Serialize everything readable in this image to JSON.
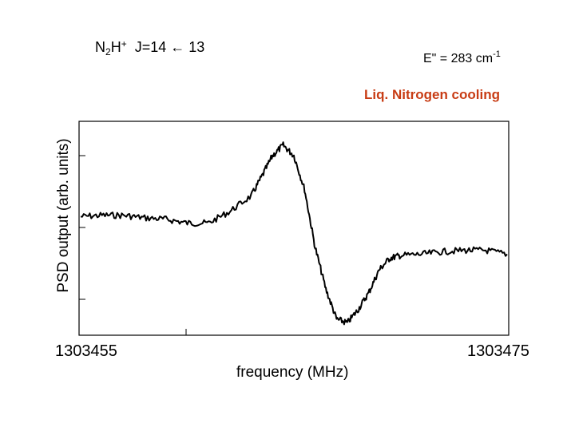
{
  "chart_data": {
    "type": "line",
    "title_parts": {
      "a": "N",
      "b": "2",
      "c": "H",
      "d": "+",
      "e": "J=14 ← 13"
    },
    "energy": {
      "main": "E\" = 283 cm",
      "exp": "-1"
    },
    "annotation": "Liq. Nitrogen cooling",
    "xlabel": "frequency (MHz)",
    "ylabel": "PSD output (arb. units)",
    "x_tick_labels": [
      "1303455",
      "1303475"
    ],
    "xlim": [
      1303455,
      1303475
    ],
    "ylim": [
      -0.6,
      1.0
    ],
    "grid": false,
    "legend": "none",
    "colors": {
      "line": "#000000",
      "annotation": "#c83c14"
    },
    "series": [
      {
        "x": [
          1303455.0,
          1303456.0,
          1303457.0,
          1303458.0,
          1303459.0,
          1303460.0,
          1303461.0,
          1303462.0,
          1303463.0,
          1303463.5,
          1303464.0,
          1303464.5,
          1303465.0,
          1303465.5,
          1303466.0,
          1303466.5,
          1303467.0,
          1303467.5,
          1303468.0,
          1303468.5,
          1303469.0,
          1303469.5,
          1303470.0,
          1303471.0,
          1303472.0,
          1303473.0,
          1303474.0,
          1303475.0
        ],
        "y": [
          0.29,
          0.3,
          0.3,
          0.28,
          0.27,
          0.24,
          0.24,
          0.33,
          0.45,
          0.6,
          0.76,
          0.84,
          0.76,
          0.5,
          0.05,
          -0.27,
          -0.5,
          -0.53,
          -0.43,
          -0.3,
          -0.12,
          -0.03,
          -0.01,
          0.0,
          0.02,
          0.03,
          0.03,
          0.0
        ]
      }
    ]
  }
}
